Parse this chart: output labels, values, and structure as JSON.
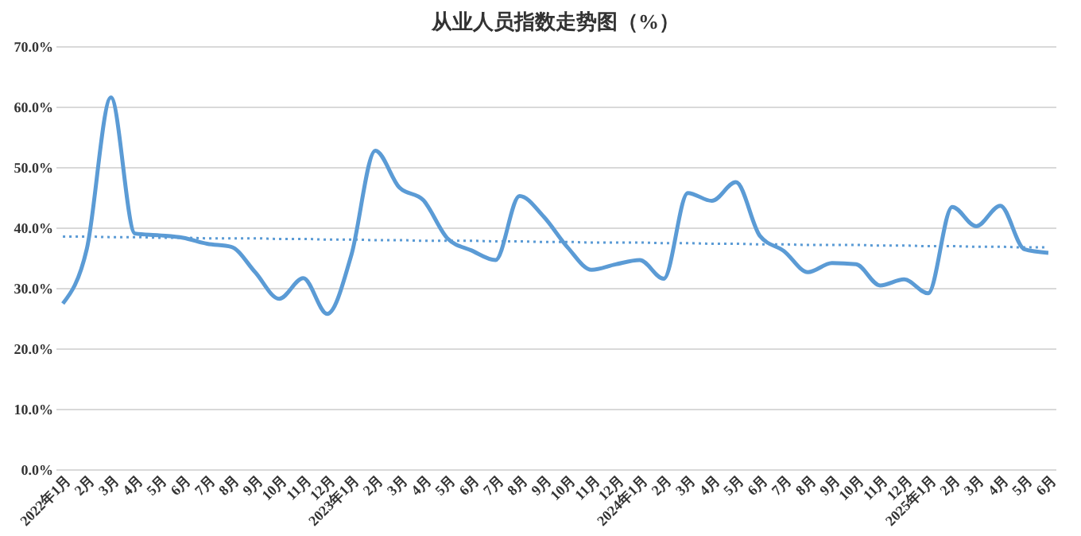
{
  "chart_data": {
    "type": "line",
    "title": "从业人员指数走势图（%）",
    "categories": [
      "2022年1月",
      "2月",
      "3月",
      "4月",
      "5月",
      "6月",
      "7月",
      "8月",
      "9月",
      "10月",
      "11月",
      "12月",
      "2023年1月",
      "2月",
      "3月",
      "4月",
      "5月",
      "6月",
      "7月",
      "8月",
      "9月",
      "10月",
      "11月",
      "12月",
      "2024年1月",
      "2月",
      "3月",
      "4月",
      "5月",
      "6月",
      "7月",
      "8月",
      "9月",
      "10月",
      "11月",
      "12月",
      "2025年1月",
      "2月",
      "3月",
      "4月",
      "5月",
      "6月"
    ],
    "series": [
      {
        "color": "#5b9bd5",
        "line_style": "solid",
        "values": [
          27.4,
          36.5,
          61.5,
          39.0,
          38.7,
          38.3,
          37.3,
          36.8,
          32.6,
          28.2,
          31.6,
          25.7,
          35.4,
          52.7,
          46.6,
          44.5,
          38.2,
          36.2,
          34.6,
          45.2,
          41.8,
          36.7,
          33.0,
          33.9,
          34.6,
          31.5,
          45.7,
          44.4,
          47.5,
          38.6,
          36.1,
          32.6,
          34.1,
          33.9,
          30.4,
          31.4,
          29.1,
          43.4,
          40.2,
          43.6,
          36.4,
          35.8
        ]
      },
      {
        "type": "line",
        "color": "#5b9bd5",
        "line_style": "dotted",
        "values": [
          38.5,
          38.5,
          38.4,
          38.4,
          38.3,
          38.3,
          38.2,
          38.2,
          38.2,
          38.1,
          38.1,
          38.0,
          38.0,
          37.9,
          37.9,
          37.8,
          37.8,
          37.8,
          37.7,
          37.7,
          37.6,
          37.6,
          37.5,
          37.5,
          37.5,
          37.4,
          37.4,
          37.3,
          37.3,
          37.2,
          37.2,
          37.1,
          37.1,
          37.1,
          37.0,
          37.0,
          36.9,
          36.9,
          36.8,
          36.8,
          36.7,
          36.7
        ]
      }
    ],
    "ylim": [
      0,
      70
    ],
    "yticks": [
      {
        "value": 0,
        "label": "0.0%"
      },
      {
        "value": 10,
        "label": "10.0%"
      },
      {
        "value": 20,
        "label": "20.0%"
      },
      {
        "value": 30,
        "label": "30.0%"
      },
      {
        "value": 40,
        "label": "40.0%"
      },
      {
        "value": 50,
        "label": "50.0%"
      },
      {
        "value": 60,
        "label": "60.0%"
      },
      {
        "value": 70,
        "label": "70.0%"
      }
    ],
    "grid": "y",
    "marker": "none"
  }
}
